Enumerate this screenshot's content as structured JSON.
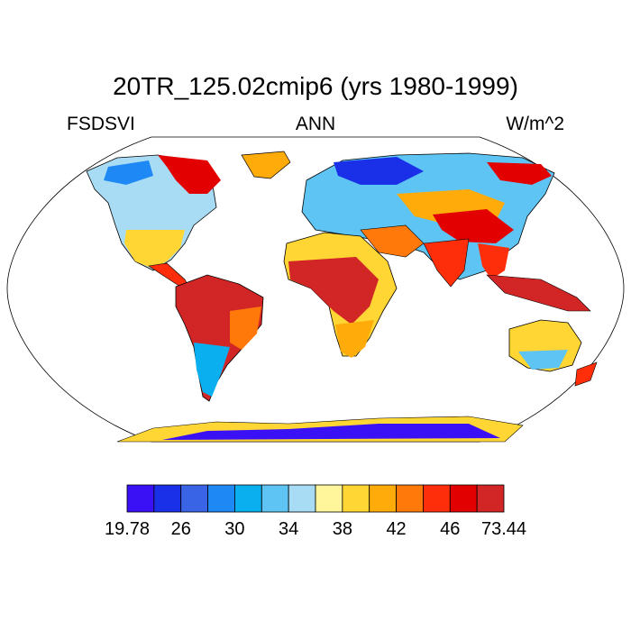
{
  "chart_data": {
    "type": "heatmap",
    "title": "20TR_125.02cmip6 (yrs 1980-1999)",
    "variable": "FSDSVI",
    "season": "ANN",
    "units": "W/m^2",
    "projection": "Robinson world map (land only)",
    "colorbar": {
      "levels": [
        19.78,
        26,
        30,
        34,
        38,
        42,
        46,
        73.44
      ],
      "colors": [
        "#3a10f5",
        "#1a30e8",
        "#3a64e6",
        "#1e88f5",
        "#0aafef",
        "#5ec4f4",
        "#a8dbf4",
        "#fff59a",
        "#ffd633",
        "#ffab0a",
        "#ff780a",
        "#ff2e0a",
        "#e30000",
        "#d22525"
      ]
    }
  },
  "colors": {
    "background": "#ffffff",
    "outline": "#000000"
  }
}
